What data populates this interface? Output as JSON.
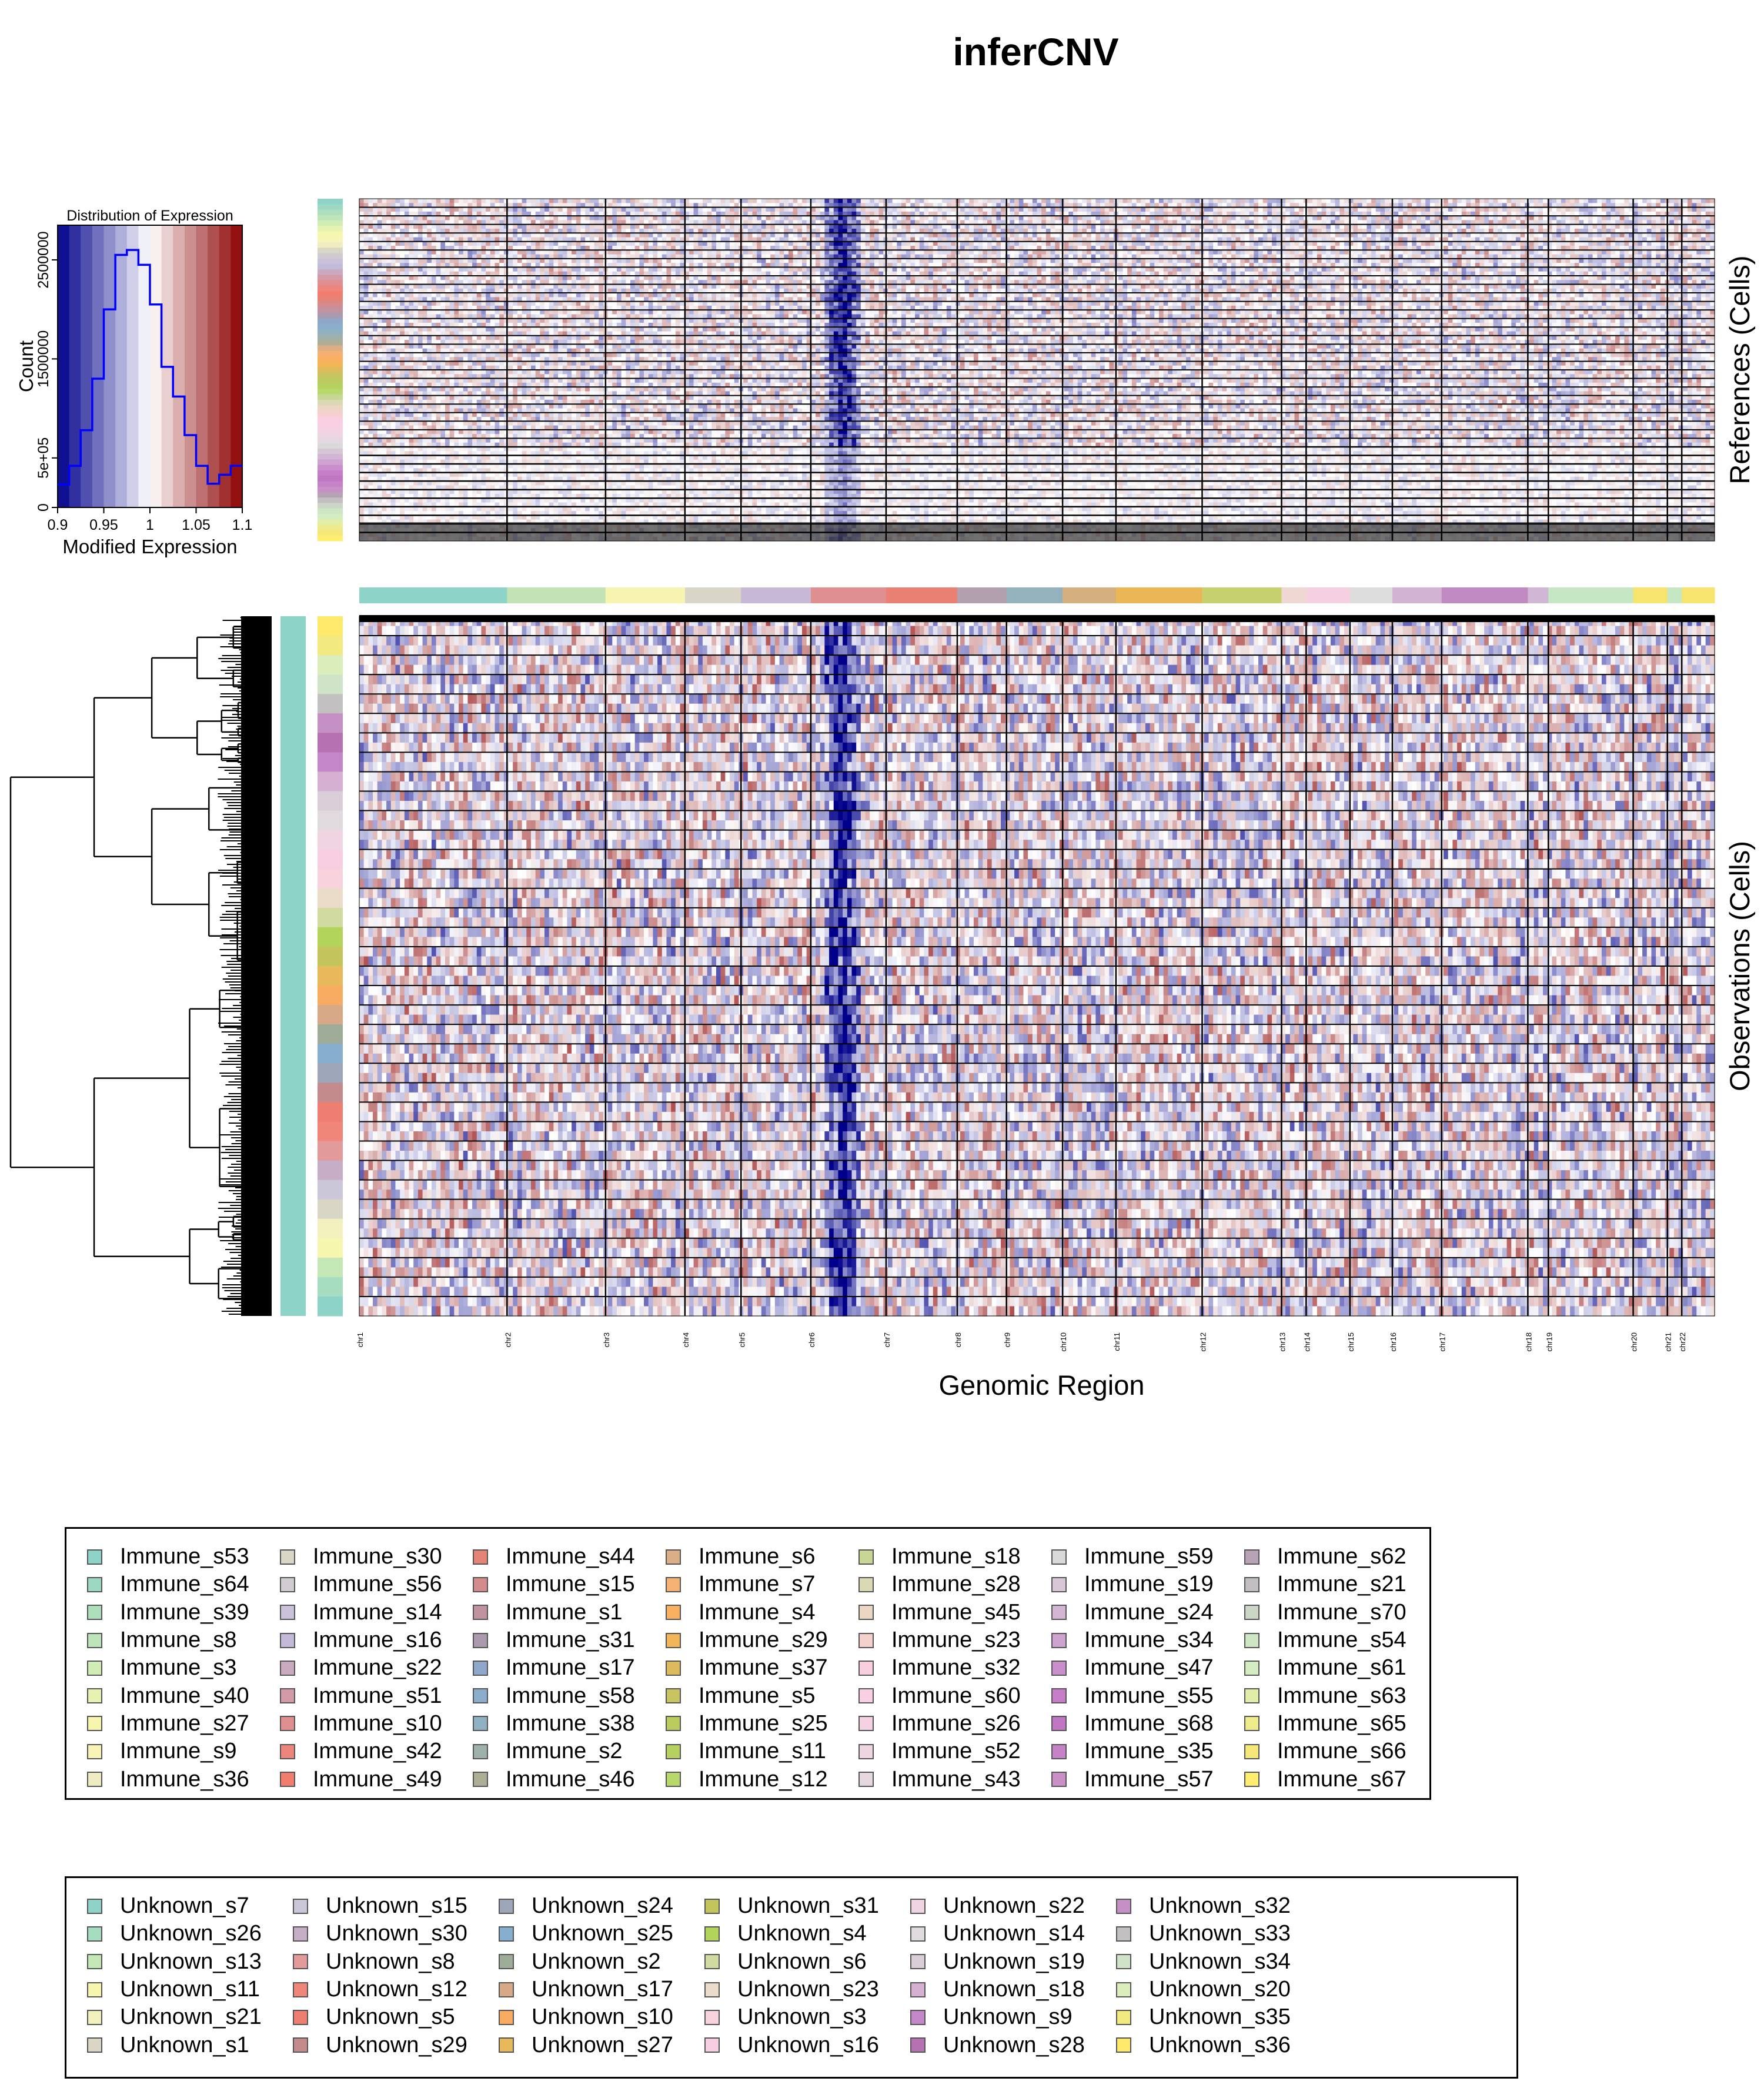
{
  "title": "inferCNV",
  "colors": {
    "heat_low": "#00008b",
    "heat_mid": "#ffffff",
    "heat_high": "#8b0000",
    "histogram_line": "#0000ff",
    "separator": "#000000"
  },
  "chart_data": [
    {
      "type": "bar",
      "title": "Distribution of Expression",
      "xlabel": "Modified Expression",
      "ylabel": "Count",
      "x_ticks": [
        "0.9",
        "0.95",
        "1",
        "1.05",
        "1.1"
      ],
      "y_ticks": [
        "0",
        "5e+05",
        "1500000",
        "2500000"
      ],
      "xlim": [
        0.9,
        1.1
      ],
      "ylim": [
        0,
        2850000
      ],
      "bin_edges": [
        0.9,
        0.9125,
        0.925,
        0.9375,
        0.95,
        0.9625,
        0.975,
        0.9875,
        1.0,
        1.0125,
        1.025,
        1.0375,
        1.05,
        1.0625,
        1.075,
        1.0875,
        1.1
      ],
      "values": [
        230000,
        420000,
        780000,
        1300000,
        2000000,
        2550000,
        2600000,
        2450000,
        2050000,
        1420000,
        1120000,
        730000,
        420000,
        240000,
        330000,
        420000
      ],
      "color_scale": [
        "#00008b",
        "#ffffff",
        "#8b0000"
      ]
    },
    {
      "type": "heatmap",
      "xlabel": "Genomic Region",
      "panels": [
        {
          "label": "References (Cells)",
          "value_range": [
            0.9,
            1.1
          ]
        },
        {
          "label": "Observations (Cells)",
          "value_range": [
            0.9,
            1.1
          ]
        }
      ],
      "chromosomes": [
        "chr1",
        "chr2",
        "chr3",
        "chr4",
        "chr5",
        "chr6",
        "chr7",
        "chr8",
        "chr9",
        "chr10",
        "chr11",
        "chr12",
        "chr13",
        "chr14",
        "chr15",
        "chr16",
        "chr17",
        "chr18",
        "chr19",
        "chr20",
        "chr21",
        "chr22"
      ],
      "chromosome_gene_share": [
        0.108,
        0.072,
        0.058,
        0.041,
        0.051,
        0.055,
        0.052,
        0.036,
        0.041,
        0.039,
        0.063,
        0.058,
        0.018,
        0.032,
        0.031,
        0.036,
        0.063,
        0.015,
        0.062,
        0.025,
        0.0105,
        0.024
      ],
      "chromosome_bar_colors": [
        "#8dd3c7",
        "#c2e4b4",
        "#f6f4b0",
        "#dad6c7",
        "#c7b9d5",
        "#df8f90",
        "#ea8074",
        "#b3a0af",
        "#94b2be",
        "#d4ae7e",
        "#ebb756",
        "#c6d16e",
        "#efd8d3",
        "#f4d0e0",
        "#dcdcdc",
        "#d3b3d4",
        "#c089c2",
        "#d1b6d6",
        "#c5e7c3",
        "#f6e46e",
        "#c5e7c3",
        "#f6e46e"
      ],
      "features": {
        "chr6_region_depletion": true
      }
    }
  ],
  "legends": [
    {
      "items": [
        {
          "label": "Immune_s53",
          "color": "#8dd3c7"
        },
        {
          "label": "Immune_s64",
          "color": "#9dd8c2"
        },
        {
          "label": "Immune_s39",
          "color": "#addfbd"
        },
        {
          "label": "Immune_s8",
          "color": "#bde5b9"
        },
        {
          "label": "Immune_s3",
          "color": "#d2ecb5"
        },
        {
          "label": "Immune_s40",
          "color": "#e6f2b1"
        },
        {
          "label": "Immune_s27",
          "color": "#f6f6af"
        },
        {
          "label": "Immune_s9",
          "color": "#f8f3b6"
        },
        {
          "label": "Immune_s36",
          "color": "#f0ecc2"
        },
        {
          "label": "Immune_s30",
          "color": "#d9d6c5"
        },
        {
          "label": "Immune_s56",
          "color": "#cfcbd0"
        },
        {
          "label": "Immune_s14",
          "color": "#c9c2da"
        },
        {
          "label": "Immune_s16",
          "color": "#c3b9d8"
        },
        {
          "label": "Immune_s22",
          "color": "#c9aabf"
        },
        {
          "label": "Immune_s51",
          "color": "#d49aa6"
        },
        {
          "label": "Immune_s10",
          "color": "#e08f90"
        },
        {
          "label": "Immune_s42",
          "color": "#ec867c"
        },
        {
          "label": "Immune_s49",
          "color": "#f27d6e"
        },
        {
          "label": "Immune_s44",
          "color": "#e58376"
        },
        {
          "label": "Immune_s15",
          "color": "#d38b8e"
        },
        {
          "label": "Immune_s1",
          "color": "#c0939e"
        },
        {
          "label": "Immune_s31",
          "color": "#ab9aae"
        },
        {
          "label": "Immune_s17",
          "color": "#8fa7c8"
        },
        {
          "label": "Immune_s58",
          "color": "#8aaecc"
        },
        {
          "label": "Immune_s38",
          "color": "#8fb1c1"
        },
        {
          "label": "Immune_s2",
          "color": "#9db0a9"
        },
        {
          "label": "Immune_s46",
          "color": "#aeae95"
        },
        {
          "label": "Immune_s6",
          "color": "#dbae86"
        },
        {
          "label": "Immune_s7",
          "color": "#f4b172"
        },
        {
          "label": "Immune_s4",
          "color": "#f9b061"
        },
        {
          "label": "Immune_s29",
          "color": "#f2b659"
        },
        {
          "label": "Immune_s37",
          "color": "#ddbb5c"
        },
        {
          "label": "Immune_s5",
          "color": "#c9c462"
        },
        {
          "label": "Immune_s25",
          "color": "#bccb5e"
        },
        {
          "label": "Immune_s11",
          "color": "#b6d15f"
        },
        {
          "label": "Immune_s12",
          "color": "#b7d86a"
        },
        {
          "label": "Immune_s18",
          "color": "#c7d695"
        },
        {
          "label": "Immune_s28",
          "color": "#dad9b4"
        },
        {
          "label": "Immune_s45",
          "color": "#ead6c3"
        },
        {
          "label": "Immune_s23",
          "color": "#f4d1cd"
        },
        {
          "label": "Immune_s32",
          "color": "#f9cede"
        },
        {
          "label": "Immune_s60",
          "color": "#f9cfe3"
        },
        {
          "label": "Immune_s26",
          "color": "#f4d2e3"
        },
        {
          "label": "Immune_s52",
          "color": "#eed5e2"
        },
        {
          "label": "Immune_s43",
          "color": "#e5d7df"
        },
        {
          "label": "Immune_s59",
          "color": "#d9d9d9"
        },
        {
          "label": "Immune_s19",
          "color": "#d6c6d6"
        },
        {
          "label": "Immune_s24",
          "color": "#d2b6d3"
        },
        {
          "label": "Immune_s34",
          "color": "#cfa3cf"
        },
        {
          "label": "Immune_s47",
          "color": "#c98ecb"
        },
        {
          "label": "Immune_s55",
          "color": "#c47dc6"
        },
        {
          "label": "Immune_s68",
          "color": "#c076c3"
        },
        {
          "label": "Immune_s35",
          "color": "#c582c6"
        },
        {
          "label": "Immune_s57",
          "color": "#c990c8"
        },
        {
          "label": "Immune_s62",
          "color": "#b8a3b6"
        },
        {
          "label": "Immune_s21",
          "color": "#c3bec2"
        },
        {
          "label": "Immune_s70",
          "color": "#cdd5c7"
        },
        {
          "label": "Immune_s54",
          "color": "#cfe6c4"
        },
        {
          "label": "Immune_s61",
          "color": "#d5ebc1"
        },
        {
          "label": "Immune_s63",
          "color": "#e1eea7"
        },
        {
          "label": "Immune_s65",
          "color": "#eeeb8c"
        },
        {
          "label": "Immune_s66",
          "color": "#f6e779"
        },
        {
          "label": "Immune_s67",
          "color": "#ffed6f"
        }
      ]
    },
    {
      "items": [
        {
          "label": "Unknown_s7",
          "color": "#8dd3c7"
        },
        {
          "label": "Unknown_s26",
          "color": "#a6dcc0"
        },
        {
          "label": "Unknown_s13",
          "color": "#c3e8b6"
        },
        {
          "label": "Unknown_s11",
          "color": "#f6f6af"
        },
        {
          "label": "Unknown_s21",
          "color": "#f2f0bd"
        },
        {
          "label": "Unknown_s1",
          "color": "#d9d6c5"
        },
        {
          "label": "Unknown_s15",
          "color": "#cbc6d8"
        },
        {
          "label": "Unknown_s30",
          "color": "#c7aec7"
        },
        {
          "label": "Unknown_s8",
          "color": "#e39a9b"
        },
        {
          "label": "Unknown_s12",
          "color": "#f0857a"
        },
        {
          "label": "Unknown_s5",
          "color": "#ee7d72"
        },
        {
          "label": "Unknown_s29",
          "color": "#c38b8c"
        },
        {
          "label": "Unknown_s24",
          "color": "#9ca6b8"
        },
        {
          "label": "Unknown_s25",
          "color": "#86aecf"
        },
        {
          "label": "Unknown_s2",
          "color": "#9eab96"
        },
        {
          "label": "Unknown_s17",
          "color": "#d8a986"
        },
        {
          "label": "Unknown_s10",
          "color": "#f8ac62"
        },
        {
          "label": "Unknown_s27",
          "color": "#e8b95b"
        },
        {
          "label": "Unknown_s31",
          "color": "#c3c55c"
        },
        {
          "label": "Unknown_s4",
          "color": "#b3d45b"
        },
        {
          "label": "Unknown_s6",
          "color": "#d1da9f"
        },
        {
          "label": "Unknown_s23",
          "color": "#ebdcca"
        },
        {
          "label": "Unknown_s3",
          "color": "#f8d3dd"
        },
        {
          "label": "Unknown_s16",
          "color": "#f7cde2"
        },
        {
          "label": "Unknown_s22",
          "color": "#f1d4e1"
        },
        {
          "label": "Unknown_s14",
          "color": "#dedade"
        },
        {
          "label": "Unknown_s19",
          "color": "#d9cdd8"
        },
        {
          "label": "Unknown_s18",
          "color": "#d5b0d3"
        },
        {
          "label": "Unknown_s9",
          "color": "#c586c7"
        },
        {
          "label": "Unknown_s28",
          "color": "#b571b2"
        },
        {
          "label": "Unknown_s32",
          "color": "#c48fc3"
        },
        {
          "label": "Unknown_s33",
          "color": "#c3c0c2"
        },
        {
          "label": "Unknown_s34",
          "color": "#cfe4c6"
        },
        {
          "label": "Unknown_s20",
          "color": "#dcedbc"
        },
        {
          "label": "Unknown_s35",
          "color": "#f2ea80"
        },
        {
          "label": "Unknown_s36",
          "color": "#ffe96b"
        }
      ]
    }
  ]
}
